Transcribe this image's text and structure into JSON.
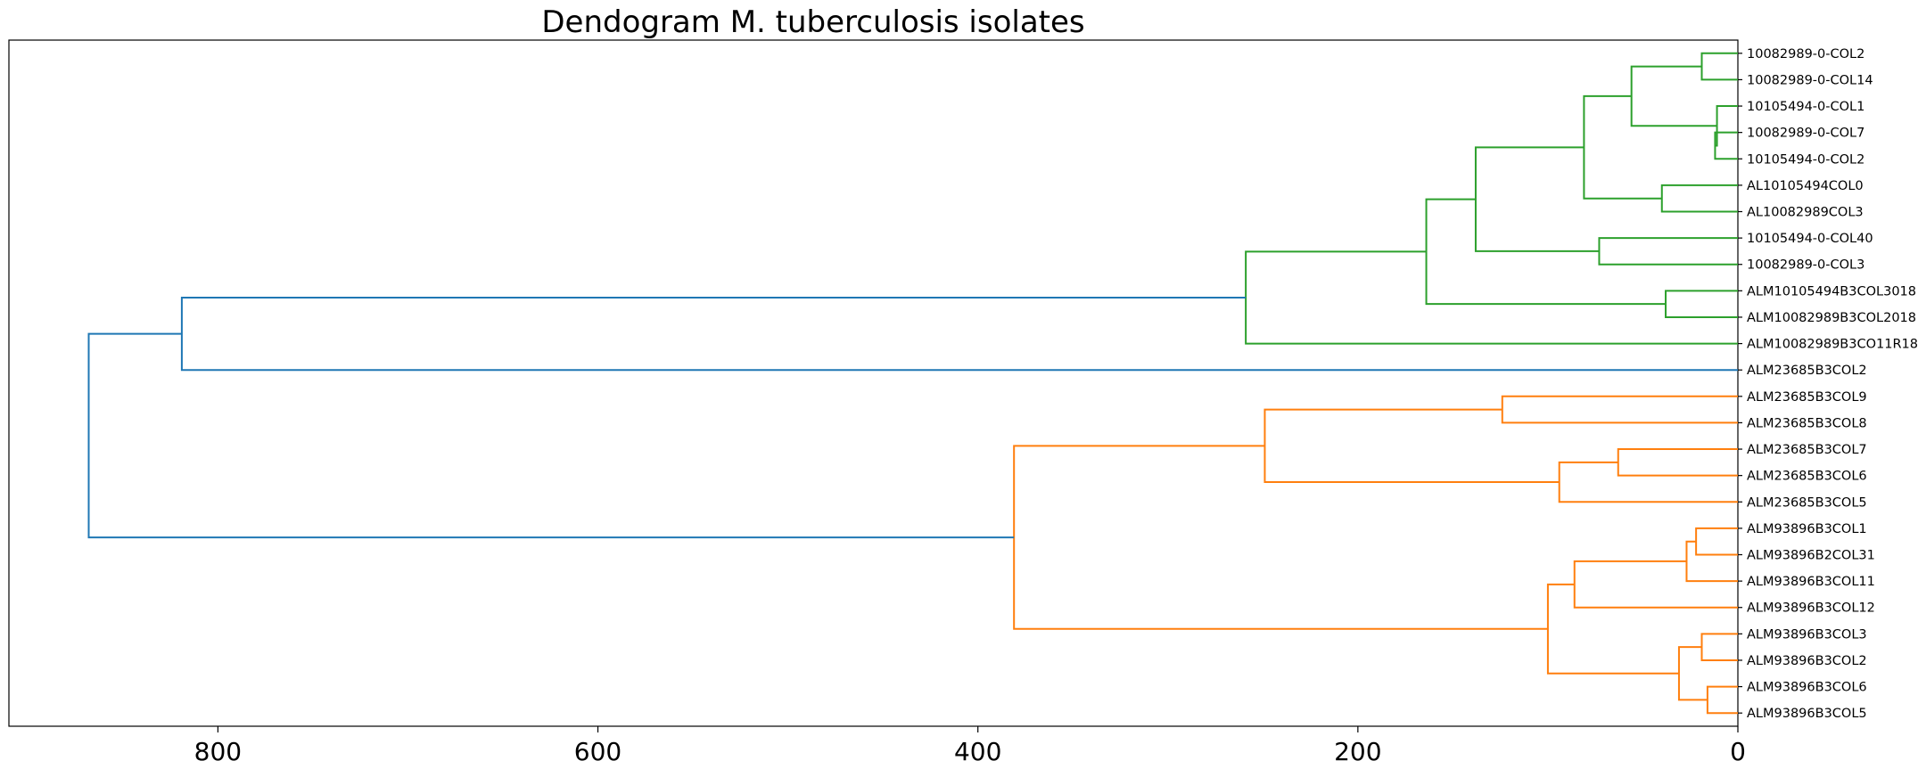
{
  "chart_data": {
    "type": "dendrogram",
    "title": "Dendogram M. tuberculosis isolates",
    "orientation": "left",
    "xlim": [
      910,
      0
    ],
    "xticks": [
      800,
      600,
      400,
      200,
      0
    ],
    "colors": {
      "c1": "#2ca02c",
      "c2": "#ff7f0e",
      "root": "#1f77b4"
    },
    "leaves": [
      "10082989-0-COL2",
      "10082989-0-COL14",
      "10105494-0-COL1",
      "10082989-0-COL7",
      "10105494-0-COL2",
      "AL10105494COL0",
      "AL10082989COL3",
      "10105494-0-COL40",
      "10082989-0-COL3",
      "ALM10105494B3COL3018",
      "ALM10082989B3COL2018",
      "ALM10082989B3CO11R18",
      "ALM23685B3COL2",
      "ALM23685B3COL9",
      "ALM23685B3COL8",
      "ALM23685B3COL7",
      "ALM23685B3COL6",
      "ALM23685B3COL5",
      "ALM93896B3COL1",
      "ALM93896B2COL31",
      "ALM93896B3COL11",
      "ALM93896B3COL12",
      "ALM93896B3COL3",
      "ALM93896B3COL2",
      "ALM93896B3COL6",
      "ALM93896B3COL5"
    ],
    "merges": [
      {
        "left": 0,
        "right": 1,
        "height": 19,
        "color": "c1"
      },
      {
        "left": 3,
        "right": 4,
        "height": 12,
        "color": "c1"
      },
      {
        "left": 2,
        "right": 27,
        "height": 11,
        "color": "c1"
      },
      {
        "left": 26,
        "right": 28,
        "height": 56,
        "color": "c1"
      },
      {
        "left": 5,
        "right": 6,
        "height": 40,
        "color": "c1"
      },
      {
        "left": 29,
        "right": 30,
        "height": 81,
        "color": "c1"
      },
      {
        "left": 7,
        "right": 8,
        "height": 73,
        "color": "c1"
      },
      {
        "left": 31,
        "right": 32,
        "height": 138,
        "color": "c1"
      },
      {
        "left": 9,
        "right": 10,
        "height": 38,
        "color": "c1"
      },
      {
        "left": 33,
        "right": 34,
        "height": 164,
        "color": "c1"
      },
      {
        "left": 35,
        "right": 11,
        "height": 259,
        "color": "c1"
      },
      {
        "left": 36,
        "right": 12,
        "height": 819,
        "color": "root"
      },
      {
        "left": 13,
        "right": 14,
        "height": 124,
        "color": "c2"
      },
      {
        "left": 15,
        "right": 16,
        "height": 63,
        "color": "c2"
      },
      {
        "left": 39,
        "right": 17,
        "height": 94,
        "color": "c2"
      },
      {
        "left": 38,
        "right": 40,
        "height": 249,
        "color": "c2"
      },
      {
        "left": 18,
        "right": 19,
        "height": 22,
        "color": "c2"
      },
      {
        "left": 42,
        "right": 20,
        "height": 27,
        "color": "c2"
      },
      {
        "left": 43,
        "right": 21,
        "height": 86,
        "color": "c2"
      },
      {
        "left": 22,
        "right": 23,
        "height": 19,
        "color": "c2"
      },
      {
        "left": 24,
        "right": 25,
        "height": 16,
        "color": "c2"
      },
      {
        "left": 45,
        "right": 46,
        "height": 31,
        "color": "c2"
      },
      {
        "left": 44,
        "right": 47,
        "height": 100,
        "color": "c2"
      },
      {
        "left": 41,
        "right": 48,
        "height": 381,
        "color": "c2"
      },
      {
        "left": 37,
        "right": 49,
        "height": 868,
        "color": "root"
      }
    ]
  }
}
